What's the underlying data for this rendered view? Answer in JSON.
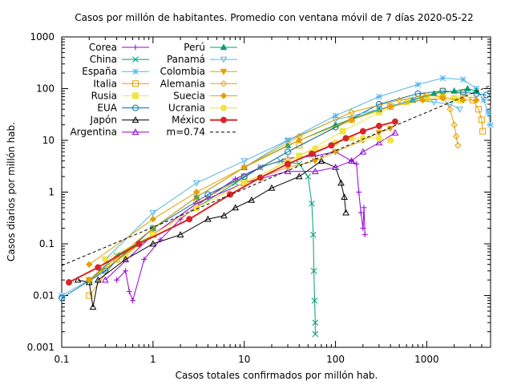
{
  "chart_data": {
    "type": "line",
    "title": "Casos por millón de habitantes. Promedio con ventana móvil de 7 días 2020-05-22",
    "xlabel": "Casos totales confirmados por millón hab.",
    "ylabel": "Casos diarios por millón hab.",
    "x_scale": "log",
    "y_scale": "log",
    "xlim": [
      0.1,
      5000
    ],
    "ylim": [
      0.001,
      1000
    ],
    "x_ticks": [
      {
        "value": 0.1,
        "label": "0.1"
      },
      {
        "value": 1,
        "label": "1"
      },
      {
        "value": 10,
        "label": "10"
      },
      {
        "value": 100,
        "label": "100"
      },
      {
        "value": 1000,
        "label": "1000"
      }
    ],
    "y_ticks": [
      {
        "value": 0.001,
        "label": "0.001"
      },
      {
        "value": 0.01,
        "label": "0.01"
      },
      {
        "value": 0.1,
        "label": "0.1"
      },
      {
        "value": 1,
        "label": "1"
      },
      {
        "value": 10,
        "label": "10"
      },
      {
        "value": 100,
        "label": "100"
      },
      {
        "value": 1000,
        "label": "1000"
      }
    ],
    "grid": false,
    "legend_position": "top-left",
    "series": [
      {
        "name": "Corea",
        "color": "#9400d3",
        "marker": "plus",
        "points": [
          [
            0.4,
            0.02
          ],
          [
            0.5,
            0.03
          ],
          [
            0.55,
            0.012
          ],
          [
            0.6,
            0.008
          ],
          [
            0.8,
            0.05
          ],
          [
            1.2,
            0.12
          ],
          [
            2,
            0.3
          ],
          [
            4,
            0.8
          ],
          [
            8,
            1.8
          ],
          [
            15,
            3
          ],
          [
            30,
            4.5
          ],
          [
            60,
            5
          ],
          [
            100,
            6
          ],
          [
            150,
            4
          ],
          [
            170,
            3.5
          ],
          [
            180,
            1
          ],
          [
            190,
            0.4
          ],
          [
            200,
            0.2
          ],
          [
            205,
            0.5
          ],
          [
            210,
            0.15
          ]
        ]
      },
      {
        "name": "China",
        "color": "#009e73",
        "marker": "x",
        "points": [
          [
            0.2,
            0.02
          ],
          [
            0.4,
            0.06
          ],
          [
            1,
            0.15
          ],
          [
            3,
            0.5
          ],
          [
            8,
            1.5
          ],
          [
            15,
            3
          ],
          [
            25,
            4
          ],
          [
            40,
            3.5
          ],
          [
            50,
            2
          ],
          [
            55,
            0.6
          ],
          [
            57,
            0.15
          ],
          [
            58,
            0.03
          ],
          [
            59,
            0.008
          ],
          [
            60,
            0.003
          ],
          [
            60,
            0.0018
          ]
        ]
      },
      {
        "name": "España",
        "color": "#56b4e9",
        "marker": "star",
        "points": [
          [
            0.1,
            0.01
          ],
          [
            0.3,
            0.03
          ],
          [
            1,
            0.2
          ],
          [
            3,
            0.8
          ],
          [
            10,
            3
          ],
          [
            30,
            10
          ],
          [
            100,
            30
          ],
          [
            300,
            70
          ],
          [
            800,
            120
          ],
          [
            1500,
            160
          ],
          [
            2500,
            150
          ],
          [
            3500,
            100
          ],
          [
            4200,
            60
          ],
          [
            4700,
            35
          ],
          [
            5000,
            20
          ]
        ]
      },
      {
        "name": "Italia",
        "color": "#e69f00",
        "marker": "square",
        "points": [
          [
            0.2,
            0.01
          ],
          [
            0.4,
            0.05
          ],
          [
            1,
            0.15
          ],
          [
            3,
            0.6
          ],
          [
            10,
            2
          ],
          [
            40,
            8
          ],
          [
            150,
            25
          ],
          [
            400,
            45
          ],
          [
            900,
            70
          ],
          [
            1500,
            90
          ],
          [
            2500,
            80
          ],
          [
            3200,
            60
          ],
          [
            3700,
            40
          ],
          [
            4000,
            25
          ],
          [
            4100,
            15
          ]
        ]
      },
      {
        "name": "Rusia",
        "color": "#f0e442",
        "marker": "fsquare",
        "points": [
          [
            0.2,
            0.02
          ],
          [
            0.5,
            0.06
          ],
          [
            1,
            0.15
          ],
          [
            3,
            0.5
          ],
          [
            10,
            1.5
          ],
          [
            40,
            5
          ],
          [
            120,
            15
          ],
          [
            300,
            35
          ],
          [
            600,
            55
          ],
          [
            1000,
            65
          ],
          [
            1500,
            70
          ],
          [
            2000,
            65
          ],
          [
            2300,
            60
          ]
        ]
      },
      {
        "name": "EUA",
        "color": "#0072b2",
        "marker": "circle",
        "points": [
          [
            0.1,
            0.009
          ],
          [
            0.3,
            0.03
          ],
          [
            1,
            0.2
          ],
          [
            4,
            0.9
          ],
          [
            10,
            2
          ],
          [
            30,
            6
          ],
          [
            100,
            18
          ],
          [
            300,
            50
          ],
          [
            800,
            80
          ],
          [
            1500,
            90
          ],
          [
            2500,
            85
          ],
          [
            3500,
            80
          ],
          [
            4500,
            75
          ]
        ]
      },
      {
        "name": "Japón",
        "color": "#000000",
        "marker": "triangle",
        "points": [
          [
            0.15,
            0.02
          ],
          [
            0.2,
            0.018
          ],
          [
            0.22,
            0.006
          ],
          [
            0.25,
            0.02
          ],
          [
            0.5,
            0.05
          ],
          [
            1,
            0.1
          ],
          [
            2,
            0.15
          ],
          [
            4,
            0.3
          ],
          [
            6,
            0.35
          ],
          [
            8,
            0.5
          ],
          [
            12,
            0.7
          ],
          [
            20,
            1.2
          ],
          [
            40,
            2
          ],
          [
            70,
            4
          ],
          [
            100,
            3
          ],
          [
            115,
            1.5
          ],
          [
            125,
            0.8
          ],
          [
            130,
            0.4
          ]
        ]
      },
      {
        "name": "Argentina",
        "color": "#9400d3",
        "marker": "otriangle",
        "points": [
          [
            0.3,
            0.02
          ],
          [
            1,
            0.15
          ],
          [
            3,
            0.6
          ],
          [
            10,
            1.5
          ],
          [
            30,
            2.5
          ],
          [
            60,
            2.5
          ],
          [
            100,
            3
          ],
          [
            150,
            4
          ],
          [
            200,
            6
          ],
          [
            300,
            9
          ],
          [
            450,
            14
          ]
        ]
      },
      {
        "name": "Perú",
        "color": "#009e73",
        "marker": "ftriangle",
        "points": [
          [
            0.2,
            0.02
          ],
          [
            1,
            0.2
          ],
          [
            3,
            0.8
          ],
          [
            10,
            3
          ],
          [
            30,
            8
          ],
          [
            100,
            20
          ],
          [
            300,
            40
          ],
          [
            700,
            60
          ],
          [
            1200,
            80
          ],
          [
            2000,
            90
          ],
          [
            2800,
            100
          ],
          [
            3500,
            90
          ]
        ]
      },
      {
        "name": "Panamá",
        "color": "#56b4e9",
        "marker": "dtriangle",
        "points": [
          [
            0.3,
            0.05
          ],
          [
            1,
            0.4
          ],
          [
            3,
            1.5
          ],
          [
            10,
            4
          ],
          [
            30,
            10
          ],
          [
            100,
            25
          ],
          [
            300,
            40
          ],
          [
            700,
            60
          ],
          [
            1200,
            55
          ],
          [
            1800,
            50
          ],
          [
            2300,
            40
          ]
        ]
      },
      {
        "name": "Colombia",
        "color": "#e69f00",
        "marker": "fdtriangle",
        "points": [
          [
            0.2,
            0.02
          ],
          [
            1,
            0.15
          ],
          [
            3,
            0.5
          ],
          [
            10,
            1.5
          ],
          [
            30,
            3
          ],
          [
            60,
            4
          ],
          [
            100,
            6
          ],
          [
            200,
            10
          ],
          [
            300,
            14
          ],
          [
            400,
            17
          ]
        ]
      },
      {
        "name": "Alemania",
        "color": "#e69f00",
        "marker": "diamond",
        "points": [
          [
            0.2,
            0.02
          ],
          [
            1,
            0.2
          ],
          [
            3,
            0.8
          ],
          [
            10,
            3
          ],
          [
            40,
            12
          ],
          [
            150,
            35
          ],
          [
            500,
            60
          ],
          [
            1000,
            75
          ],
          [
            1500,
            70
          ],
          [
            1800,
            40
          ],
          [
            2000,
            20
          ],
          [
            2100,
            12
          ],
          [
            2200,
            8
          ]
        ]
      },
      {
        "name": "Suecia",
        "color": "#e69f00",
        "marker": "fdiamond",
        "points": [
          [
            0.2,
            0.04
          ],
          [
            1,
            0.3
          ],
          [
            3,
            1
          ],
          [
            10,
            3
          ],
          [
            40,
            10
          ],
          [
            150,
            25
          ],
          [
            400,
            45
          ],
          [
            900,
            60
          ],
          [
            1500,
            65
          ],
          [
            2500,
            60
          ],
          [
            3500,
            60
          ]
        ]
      },
      {
        "name": "Ucrania",
        "color": "#f0e442",
        "marker": "fcircle",
        "points": [
          [
            0.3,
            0.05
          ],
          [
            1,
            0.15
          ],
          [
            3,
            0.5
          ],
          [
            10,
            1.5
          ],
          [
            30,
            4
          ],
          [
            60,
            7
          ],
          [
            100,
            9
          ],
          [
            150,
            11
          ],
          [
            200,
            11
          ],
          [
            300,
            11
          ],
          [
            400,
            10
          ]
        ]
      },
      {
        "name": "México",
        "color": "#d62728",
        "marker": "fcircle",
        "points": [
          [
            0.12,
            0.018
          ],
          [
            0.25,
            0.035
          ],
          [
            0.7,
            0.1
          ],
          [
            2.5,
            0.3
          ],
          [
            7,
            0.9
          ],
          [
            15,
            1.9
          ],
          [
            30,
            3.5
          ],
          [
            55,
            5.5
          ],
          [
            90,
            8
          ],
          [
            130,
            11
          ],
          [
            200,
            15
          ],
          [
            300,
            19
          ],
          [
            450,
            23
          ]
        ]
      },
      {
        "name": "m=0.74",
        "color": "#000000",
        "marker": "none",
        "dashed": true,
        "points": [
          [
            0.1,
            0.038
          ],
          [
            5000,
            115
          ]
        ]
      }
    ]
  }
}
